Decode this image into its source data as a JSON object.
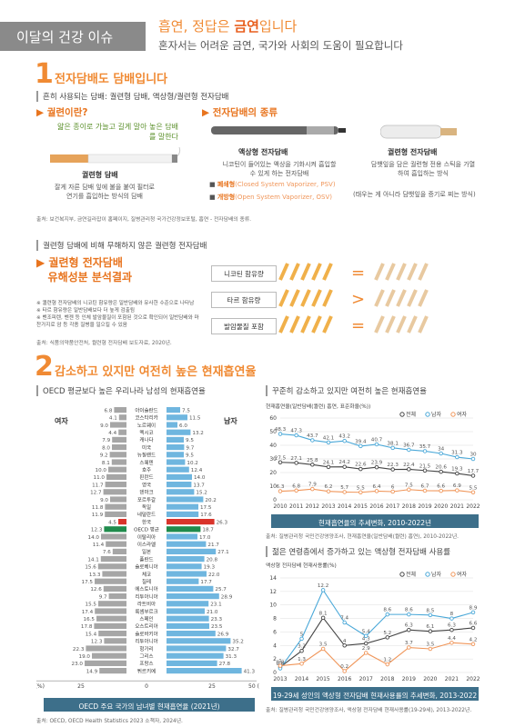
{
  "header": {
    "box": "이달의 건강 이슈",
    "title_pre": "흡연, 정답은 ",
    "title_bold": "금연",
    "title_post": "입니다",
    "subtitle": "혼자서는 어려운 금연, 국가와 사회의 도움이 필요합니다"
  },
  "section1": {
    "num": "1",
    "title": "전자담배도 담배입니다",
    "sub": "흔히 사용되는 담배: 궐련형 담배, 액상형/궐련형 전자담배",
    "cig_head": "궐련이란?",
    "cig_desc": "얇은 종이로 가늘고 길게 말아 놓은 담배를 말한다",
    "cig_label": "궐련형 담배",
    "cig_text": "잘게 자른 담배 잎에 불을 붙여 필터로 연기를 흡입하는 방식의 담배",
    "ecig_head": "전자담배의 종류",
    "liquid_label": "액상형 전자담배",
    "liquid_text": "니코틴이 들어있는 액상을 기화시켜 흡입할 수 있게 하는 전자담배",
    "closed": "폐쇄형",
    "closed_en": "(Closed System Vaporizer, PSV)",
    "open": "개방형",
    "open_en": "(Open System Vaporizer, OSV)",
    "heat_label": "궐련형 전자담배",
    "heat_text": "담뱃잎을 담은 궐련형 전용 스틱을 가열하여 흡입하는 방식",
    "heat_note": "(태우는 게 아니라 담뱃잎을 증기로 찌는 방식)",
    "source": "출처: 보건복지부, 금연길라잡이 홈페이지, 질병관리청 국가건강정보포털, 흡연 - 전자담배의 종류."
  },
  "compare": {
    "sub": "궐련형 담배에 비해 무해하지 않은 궐련형 전자담배",
    "title1": "궐련형 전자담배",
    "title2": "유해성분 분석결과",
    "notes": [
      "※ 궐련형 전자담배의 니코틴 함유량은 일반담배와 유사한 수준으로 나타남",
      "※ 타르 함유량은 일반담배보다 더 높게 검출됨",
      "※ 벤조피렌, 벤젠 등 인체 발암물질이 포함된 것으로 확인되어 일반담배와 마찬가지로 암 등 각종 질병을 일으킬 수 있음"
    ],
    "rows": [
      "니코틴 함유량",
      "타르 함유량",
      "발암물질 포함"
    ],
    "signs": [
      "=",
      ">",
      "="
    ],
    "source": "출처: 식품의약품안전처, 궐련형 전자담배 보도자료, 2020년."
  },
  "section2": {
    "num": "2",
    "title": "감소하고 있지만 여전히 높은 현재흡연율",
    "left_sub": "OECD 평균보다 높은 우리나라 남성의 현재흡연율",
    "female": "여자",
    "male": "남자",
    "left_caption": "OECD 주요 국가의 남녀별 현재흡연율 (2021년)",
    "left_source": "출처: OECD, OECD Health Statistics 2023 소책자, 2024년.",
    "right_sub1": "꾸준히 감소하고 있지만 여전히 높은 현재흡연율",
    "line_axis_title": "현재흡연율(일반담배(궐련) 흡연, 표준화율(%))",
    "line_caption": "현재흡연율의 추세변화, 2010-2022년",
    "line_source": "출처: 질병관리청 국민건강영양조사, 현재흡연율(일반담배(궐련) 흡연), 2010-2022년.",
    "right_sub2": "젊은 연령층에서 증가하고 있는 액상형 전자담배 사용률",
    "e_axis_title": "액상형 전자담배 현재사용률(%)",
    "e_caption": "19-29세 성인의 액상형 전자담배 현재사용률의 추세변화, 2013-2022년",
    "e_source": "출처: 질병관리청 국민건강영양조사, 액상형 전자담배 현재사용률(19-29세), 2013-2022년.",
    "legend": [
      "전체",
      "남자",
      "여자"
    ]
  },
  "colors": {
    "orange": "#f08a33",
    "total": "#444444",
    "male": "#4aa8d8",
    "female": "#f0965a",
    "bar_f": "#a6a6a6",
    "bar_m": "#6fb6df",
    "korea": "#d9342b",
    "oecd": "#1f8b4c",
    "caption": "#3d6f8a"
  },
  "chart_data": [
    {
      "type": "bar",
      "title": "OECD 주요 국가의 남녀별 현재흡연율 (2021년)",
      "categories": [
        "아이슬란드",
        "코스타리카",
        "노르웨이",
        "멕시코",
        "캐나다",
        "미국",
        "뉴질랜드",
        "스웨덴",
        "호주",
        "핀란드",
        "영국",
        "덴마크",
        "포르투갈",
        "독일",
        "네덜란드",
        "한국",
        "OECD 평균",
        "이탈리아",
        "이스라엘",
        "일본",
        "폴란드",
        "슬로베니아",
        "체코",
        "칠레",
        "에스토니아",
        "리투아니아",
        "라트비아",
        "룩셈부르크",
        "스페인",
        "오스트리아",
        "슬로바키아",
        "리투아니아",
        "헝가리",
        "그리스",
        "프랑스",
        "튀르키예"
      ],
      "series": [
        {
          "name": "여자",
          "values": [
            6.8,
            4.1,
            9.0,
            4.4,
            7.9,
            8.0,
            9.2,
            8.1,
            10.0,
            11.0,
            11.7,
            12.7,
            9.0,
            11.8,
            11.9,
            4.5,
            12.3,
            14.0,
            11.4,
            7.6,
            14.1,
            15.6,
            13.3,
            17.5,
            12.6,
            9.7,
            15.5,
            17.4,
            16.5,
            17.8,
            15.4,
            12.3,
            22.3,
            19.0,
            23.0,
            14.9
          ]
        },
        {
          "name": "남자",
          "values": [
            7.5,
            11.5,
            6.0,
            13.2,
            9.5,
            9.7,
            9.5,
            10.2,
            12.4,
            14.0,
            13.7,
            15.2,
            20.2,
            17.5,
            17.6,
            26.3,
            18.7,
            17.0,
            21.7,
            27.1,
            20.8,
            19.3,
            22.0,
            17.7,
            25.7,
            28.9,
            23.1,
            21.0,
            23.3,
            23.5,
            26.9,
            35.2,
            32.7,
            31.3,
            27.8,
            41.3
          ]
        }
      ],
      "xlim": [
        -50,
        50
      ],
      "xticks": [
        "50 (%)",
        "25",
        "0",
        "25",
        "50 (%)"
      ]
    },
    {
      "type": "line",
      "title": "현재흡연율의 추세변화, 2010-2022년",
      "ylabel": "현재흡연율(일반담배(궐련) 흡연, 표준화율(%))",
      "x": [
        2010,
        2011,
        2012,
        2013,
        2014,
        2015,
        2016,
        2017,
        2018,
        2019,
        2020,
        2021,
        2022
      ],
      "ylim": [
        0,
        60
      ],
      "yticks": [
        0,
        10,
        20,
        30,
        40,
        50,
        60
      ],
      "series": [
        {
          "name": "전체",
          "values": [
            27.5,
            27.1,
            25.8,
            24.1,
            24.2,
            22.6,
            23.9,
            22.3,
            22.4,
            21.5,
            20.6,
            19.3,
            17.7
          ]
        },
        {
          "name": "남자",
          "values": [
            48.3,
            47.3,
            43.7,
            42.1,
            43.2,
            39.4,
            40.7,
            38.1,
            36.7,
            35.7,
            34.0,
            31.3,
            30.0
          ]
        },
        {
          "name": "여자",
          "values": [
            6.3,
            6.8,
            7.9,
            6.2,
            5.7,
            5.5,
            6.4,
            6.0,
            7.5,
            6.7,
            6.6,
            6.9,
            5.5
          ]
        }
      ],
      "legend": "top-right",
      "grid": true
    },
    {
      "type": "line",
      "title": "19-29세 성인의 액상형 전자담배 현재사용률의 추세변화, 2013-2022년",
      "ylabel": "액상형 전자담배 현재사용률(%)",
      "x": [
        2013,
        2014,
        2015,
        2016,
        2017,
        2018,
        2019,
        2020,
        2021,
        2022
      ],
      "ylim": [
        0,
        14
      ],
      "yticks": [
        0,
        2,
        4,
        6,
        8,
        10,
        12,
        14
      ],
      "series": [
        {
          "name": "전체",
          "values": [
            0.8,
            3.2,
            8.1,
            4.0,
            4.3,
            5.2,
            6.3,
            6.1,
            6.3,
            6.6
          ]
        },
        {
          "name": "남자",
          "values": [
            0.6,
            5.0,
            12.2,
            7.4,
            5.4,
            8.6,
            8.6,
            8.5,
            8.0,
            8.9
          ]
        },
        {
          "name": "여자",
          "values": [
            1.0,
            1.3,
            3.5,
            0.2,
            2.9,
            1.2,
            3.7,
            3.5,
            4.4,
            4.2
          ]
        }
      ],
      "legend": "top-right",
      "grid": true
    }
  ]
}
